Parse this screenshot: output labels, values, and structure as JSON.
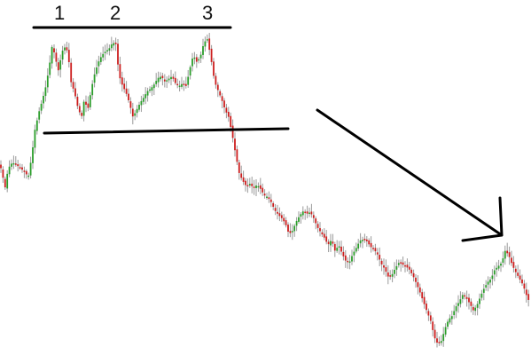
{
  "chart_data": {
    "type": "candlestick",
    "title": "",
    "xlabel": "",
    "ylabel": "",
    "grid": false,
    "legend": "none",
    "peak_labels": [
      "1",
      "2",
      "3"
    ],
    "colors": {
      "up": "#2a9d2a",
      "down": "#cc1e1e",
      "wick": "#9a9a9a",
      "line": "#000000"
    },
    "close_path": [
      [
        0,
        185
      ],
      [
        6,
        212
      ],
      [
        9,
        190
      ],
      [
        14,
        183
      ],
      [
        20,
        187
      ],
      [
        26,
        192
      ],
      [
        32,
        199
      ],
      [
        36,
        175
      ],
      [
        39,
        148
      ],
      [
        44,
        126
      ],
      [
        48,
        112
      ],
      [
        52,
        96
      ],
      [
        56,
        72
      ],
      [
        59,
        50
      ],
      [
        63,
        68
      ],
      [
        66,
        80
      ],
      [
        70,
        58
      ],
      [
        74,
        52
      ],
      [
        77,
        62
      ],
      [
        80,
        92
      ],
      [
        84,
        104
      ],
      [
        88,
        122
      ],
      [
        92,
        132
      ],
      [
        95,
        112
      ],
      [
        99,
        124
      ],
      [
        103,
        100
      ],
      [
        107,
        82
      ],
      [
        111,
        70
      ],
      [
        115,
        62
      ],
      [
        119,
        58
      ],
      [
        123,
        55
      ],
      [
        127,
        48
      ],
      [
        131,
        50
      ],
      [
        134,
        84
      ],
      [
        138,
        96
      ],
      [
        142,
        104
      ],
      [
        146,
        116
      ],
      [
        150,
        132
      ],
      [
        154,
        124
      ],
      [
        158,
        116
      ],
      [
        162,
        110
      ],
      [
        166,
        103
      ],
      [
        170,
        100
      ],
      [
        174,
        95
      ],
      [
        178,
        88
      ],
      [
        182,
        86
      ],
      [
        186,
        92
      ],
      [
        190,
        89
      ],
      [
        194,
        86
      ],
      [
        198,
        94
      ],
      [
        202,
        97
      ],
      [
        206,
        94
      ],
      [
        210,
        97
      ],
      [
        214,
        78
      ],
      [
        218,
        62
      ],
      [
        222,
        70
      ],
      [
        226,
        64
      ],
      [
        230,
        48
      ],
      [
        234,
        44
      ],
      [
        238,
        66
      ],
      [
        242,
        92
      ],
      [
        246,
        102
      ],
      [
        250,
        112
      ],
      [
        254,
        124
      ],
      [
        258,
        132
      ],
      [
        262,
        152
      ],
      [
        266,
        175
      ],
      [
        270,
        196
      ],
      [
        274,
        204
      ],
      [
        278,
        210
      ],
      [
        282,
        207
      ],
      [
        286,
        212
      ],
      [
        290,
        208
      ],
      [
        294,
        213
      ],
      [
        298,
        220
      ],
      [
        302,
        222
      ],
      [
        306,
        228
      ],
      [
        310,
        237
      ],
      [
        314,
        242
      ],
      [
        318,
        246
      ],
      [
        322,
        252
      ],
      [
        326,
        264
      ],
      [
        330,
        260
      ],
      [
        334,
        250
      ],
      [
        338,
        243
      ],
      [
        342,
        238
      ],
      [
        346,
        241
      ],
      [
        350,
        239
      ],
      [
        354,
        246
      ],
      [
        358,
        256
      ],
      [
        362,
        262
      ],
      [
        366,
        268
      ],
      [
        370,
        276
      ],
      [
        374,
        270
      ],
      [
        378,
        283
      ],
      [
        382,
        276
      ],
      [
        386,
        286
      ],
      [
        390,
        294
      ],
      [
        394,
        296
      ],
      [
        398,
        286
      ],
      [
        402,
        279
      ],
      [
        406,
        271
      ],
      [
        410,
        270
      ],
      [
        414,
        272
      ],
      [
        418,
        278
      ],
      [
        422,
        281
      ],
      [
        426,
        287
      ],
      [
        430,
        297
      ],
      [
        434,
        303
      ],
      [
        438,
        312
      ],
      [
        442,
        310
      ],
      [
        446,
        302
      ],
      [
        450,
        296
      ],
      [
        454,
        298
      ],
      [
        458,
        300
      ],
      [
        462,
        304
      ],
      [
        466,
        311
      ],
      [
        470,
        320
      ],
      [
        474,
        330
      ],
      [
        478,
        341
      ],
      [
        482,
        352
      ],
      [
        486,
        362
      ],
      [
        490,
        380
      ],
      [
        494,
        388
      ],
      [
        498,
        384
      ],
      [
        502,
        370
      ],
      [
        506,
        360
      ],
      [
        510,
        356
      ],
      [
        514,
        346
      ],
      [
        518,
        340
      ],
      [
        522,
        332
      ],
      [
        526,
        336
      ],
      [
        530,
        342
      ],
      [
        534,
        350
      ],
      [
        538,
        344
      ],
      [
        542,
        334
      ],
      [
        546,
        325
      ],
      [
        550,
        318
      ],
      [
        554,
        314
      ],
      [
        558,
        304
      ],
      [
        562,
        300
      ],
      [
        566,
        296
      ],
      [
        570,
        282
      ],
      [
        574,
        288
      ],
      [
        578,
        299
      ],
      [
        582,
        307
      ],
      [
        586,
        314
      ],
      [
        590,
        321
      ],
      [
        594,
        333
      ],
      [
        598,
        342
      ]
    ],
    "lines": {
      "resistance": [
        [
          38,
          31
        ],
        [
          260,
          31
        ]
      ],
      "support": [
        [
          50,
          150
        ],
        [
          325,
          145
        ]
      ]
    },
    "arrow": {
      "from": [
        358,
        124
      ],
      "to": [
        566,
        265
      ]
    }
  }
}
